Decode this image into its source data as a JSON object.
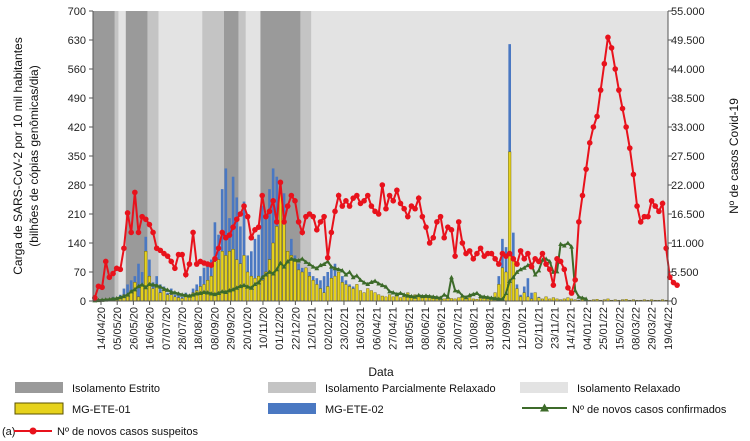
{
  "chart_data": {
    "type": "bar+line",
    "panel_label": "(a)",
    "xlabel": "Data",
    "ylabel_left": "Carga de SARS-CoV-2 por 10 mil habitantes (bilhões de cópias genômicas/dia)",
    "ylabel_right": "Nº de casos Covid-19",
    "left_ticks": [
      0,
      70,
      140,
      210,
      280,
      350,
      420,
      490,
      560,
      630,
      700
    ],
    "right_ticks": [
      "0",
      "5.500",
      "11.000",
      "16.500",
      "22.000",
      "27.500",
      "33.000",
      "38.500",
      "44.000",
      "49.500",
      "55.000"
    ],
    "ylim_left": [
      0,
      700
    ],
    "ylim_right": [
      0,
      55000
    ],
    "x_tick_labels": [
      "14/04/20",
      "05/05/20",
      "26/05/20",
      "16/06/20",
      "07/07/20",
      "28/07/20",
      "18/08/20",
      "08/09/20",
      "29/09/20",
      "20/10/20",
      "10/11/20",
      "01/12/20",
      "22/12/20",
      "12/01/21",
      "02/02/21",
      "23/02/21",
      "16/03/21",
      "06/04/21",
      "27/04/21",
      "18/05/21",
      "08/06/21",
      "29/06/21",
      "20/07/21",
      "10/08/21",
      "31/08/21",
      "21/09/21",
      "12/10/21",
      "02/11/21",
      "23/11/21",
      "14/12/21",
      "04/01/22",
      "25/01/22",
      "15/02/22",
      "08/03/22",
      "29/03/22",
      "19/04/22"
    ],
    "background_periods": [
      {
        "type": "estrito",
        "start_week": 0,
        "end_week": 6
      },
      {
        "type": "parcial",
        "start_week": 6,
        "end_week": 7
      },
      {
        "type": "relaxado",
        "start_week": 7,
        "end_week": 9
      },
      {
        "type": "estrito",
        "start_week": 9,
        "end_week": 15
      },
      {
        "type": "parcial",
        "start_week": 15,
        "end_week": 18
      },
      {
        "type": "relaxado",
        "start_week": 18,
        "end_week": 30
      },
      {
        "type": "parcial",
        "start_week": 30,
        "end_week": 36
      },
      {
        "type": "estrito",
        "start_week": 36,
        "end_week": 40
      },
      {
        "type": "parcial",
        "start_week": 40,
        "end_week": 42
      },
      {
        "type": "relaxado",
        "start_week": 42,
        "end_week": 46
      },
      {
        "type": "estrito",
        "start_week": 46,
        "end_week": 57
      },
      {
        "type": "parcial",
        "start_week": 57,
        "end_week": 60
      },
      {
        "type": "relaxado",
        "start_week": 60,
        "end_week": 158
      }
    ],
    "series": [
      {
        "name": "MG-ETE-01",
        "type": "bar",
        "color": "#e6d21c",
        "values": [
          3,
          2,
          2,
          3,
          4,
          8,
          6,
          10,
          15,
          12,
          25,
          45,
          10,
          40,
          120,
          60,
          30,
          40,
          20,
          25,
          15,
          15,
          10,
          8,
          6,
          12,
          10,
          20,
          25,
          35,
          40,
          50,
          60,
          95,
          100,
          120,
          110,
          120,
          125,
          100,
          90,
          110,
          70,
          60,
          55,
          60,
          50,
          70,
          100,
          140,
          180,
          260,
          200,
          120,
          110,
          100,
          75,
          70,
          80,
          60,
          50,
          40,
          30,
          20,
          35,
          55,
          60,
          70,
          45,
          40,
          35,
          30,
          40,
          25,
          20,
          30,
          25,
          20,
          15,
          12,
          10,
          15,
          10,
          12,
          8,
          10,
          20,
          8,
          15,
          10,
          12,
          8,
          10,
          6,
          8,
          10,
          5,
          8,
          6,
          5,
          8,
          10,
          6,
          8,
          5,
          4,
          6,
          8,
          5,
          4,
          20,
          40,
          80,
          70,
          360,
          100,
          30,
          10,
          20,
          10,
          5,
          20,
          8,
          5,
          10,
          5,
          8,
          5,
          3,
          5,
          8,
          5,
          3,
          2,
          5,
          3,
          2,
          3,
          4,
          2,
          3,
          5,
          2,
          3,
          2,
          3,
          4,
          2,
          3,
          2,
          2,
          3,
          2,
          3,
          2,
          2,
          3,
          2
        ]
      },
      {
        "name": "MG-ETE-02",
        "type": "bar",
        "color": "#4a78c2",
        "values": [
          3,
          2,
          2,
          4,
          5,
          10,
          8,
          15,
          30,
          40,
          50,
          60,
          90,
          70,
          155,
          100,
          45,
          60,
          40,
          35,
          20,
          30,
          15,
          20,
          10,
          20,
          15,
          30,
          40,
          60,
          80,
          90,
          100,
          190,
          160,
          270,
          320,
          200,
          300,
          250,
          180,
          240,
          110,
          120,
          150,
          160,
          230,
          200,
          270,
          320,
          300,
          250,
          260,
          120,
          150,
          110,
          90,
          80,
          75,
          70,
          60,
          55,
          50,
          60,
          70,
          80,
          90,
          70,
          60,
          50,
          40,
          35,
          30,
          25,
          20,
          15,
          20,
          15,
          12,
          10,
          8,
          10,
          8,
          6,
          5,
          5,
          15,
          5,
          8,
          6,
          5,
          5,
          4,
          5,
          6,
          4,
          5,
          4,
          5,
          5,
          6,
          5,
          6,
          5,
          4,
          4,
          5,
          5,
          4,
          3,
          10,
          60,
          150,
          130,
          620,
          165,
          40,
          15,
          35,
          55,
          20,
          15,
          10,
          5,
          8,
          5,
          6,
          5,
          3,
          5,
          4,
          3,
          2,
          3,
          4,
          3,
          2,
          3,
          4,
          2,
          3,
          4,
          2,
          3,
          2,
          3,
          2,
          2,
          3,
          2,
          2,
          2,
          2,
          2,
          2,
          2,
          2,
          2
        ]
      },
      {
        "name": "Nº de novos casos suspeitos",
        "type": "line",
        "axis": "right",
        "color": "#e8121c",
        "values": [
          600,
          2800,
          2600,
          7500,
          4500,
          5200,
          6200,
          6000,
          10000,
          16700,
          13000,
          20600,
          13000,
          16000,
          15500,
          14500,
          13000,
          10000,
          9600,
          9000,
          8500,
          7500,
          6200,
          8800,
          8800,
          5000,
          7000,
          13000,
          7000,
          7500,
          7200,
          7000,
          6800,
          8000,
          10000,
          13000,
          12000,
          12500,
          14000,
          15500,
          16500,
          18000,
          16000,
          12000,
          13500,
          14000,
          20000,
          16000,
          17000,
          19000,
          15000,
          22500,
          15000,
          18000,
          20000,
          19000,
          15000,
          13000,
          16000,
          16500,
          16000,
          13500,
          15000,
          16000,
          8200,
          13000,
          17000,
          20000,
          18000,
          19000,
          18000,
          19500,
          20000,
          18500,
          19000,
          20000,
          18000,
          17000,
          16500,
          22000,
          17500,
          20000,
          19000,
          21000,
          18500,
          17500,
          16000,
          18000,
          17500,
          19500,
          16000,
          14000,
          11000,
          12000,
          15000,
          16000,
          12000,
          14000,
          13500,
          8500,
          15000,
          11000,
          9000,
          9500,
          8000,
          9000,
          10000,
          8500,
          9000,
          9000,
          8000,
          7000,
          9000,
          8500,
          9000,
          8000,
          7000,
          9500,
          8000,
          9000,
          6500,
          8000,
          7500,
          9000,
          7000,
          6000,
          3000,
          8000,
          7500,
          6000,
          2500,
          1500,
          4000,
          15000,
          20000,
          25000,
          30000,
          33000,
          35000,
          40000,
          45000,
          50000,
          48000,
          44000,
          40000,
          36500,
          33000,
          29000,
          24000,
          18000,
          15000,
          16000,
          16000,
          19000,
          18000,
          17000,
          18500,
          10000,
          4500,
          3500,
          3000
        ]
      },
      {
        "name": "Nº de novos casos confirmados",
        "type": "line",
        "axis": "right",
        "color": "#3d6b2a",
        "values": [
          100,
          150,
          200,
          250,
          300,
          400,
          500,
          700,
          900,
          1200,
          1800,
          2200,
          2800,
          3100,
          2600,
          3200,
          3100,
          2900,
          2700,
          2300,
          2100,
          1700,
          1600,
          1400,
          1200,
          1100,
          1000,
          1200,
          1400,
          1500,
          1700,
          1600,
          1400,
          1300,
          1500,
          1800,
          1700,
          2000,
          2200,
          2500,
          2800,
          3000,
          2700,
          2500,
          3200,
          3500,
          4500,
          5000,
          5500,
          5200,
          6000,
          7200,
          6500,
          7500,
          8000,
          7800,
          7700,
          8000,
          7400,
          7000,
          6500,
          6200,
          6800,
          7000,
          7500,
          6500,
          6200,
          6000,
          5800,
          5000,
          5500,
          4500,
          4800,
          4000,
          3500,
          3200,
          3600,
          3800,
          3300,
          3000,
          2700,
          1800,
          1600,
          1300,
          1500,
          1200,
          1000,
          900,
          800,
          1100,
          900,
          1000,
          900,
          800,
          700,
          600,
          1200,
          800,
          4500,
          2000,
          1800,
          1000,
          700,
          1100,
          1300,
          1500,
          900,
          800,
          700,
          600,
          500,
          400,
          300,
          1500,
          3800,
          4500,
          5500,
          6000,
          6300,
          6800,
          6900,
          5000,
          5800,
          7800,
          8000,
          7500,
          5500,
          5600,
          10800,
          10500,
          11000,
          10300,
          2000,
          800,
          600,
          400
        ]
      }
    ],
    "legend": {
      "estrito": "Isolamento Estrito",
      "parcial": "Isolamento Parcialmente Relaxado",
      "relaxado": "Isolamento Relaxado",
      "ete01": "MG-ETE-01",
      "ete02": "MG-ETE-02",
      "confirmados": "Nº de novos casos confirmados",
      "suspeitos": "Nº de novos casos suspeitos"
    },
    "colors": {
      "estrito": "#9a9a9a",
      "parcial": "#c4c4c4",
      "relaxado": "#e3e3e3",
      "ete01": "#e6d21c",
      "ete01_stroke": "#5b5200",
      "ete02": "#4a78c2",
      "suspeitos": "#e8121c",
      "confirmados": "#3d6b2a"
    }
  }
}
